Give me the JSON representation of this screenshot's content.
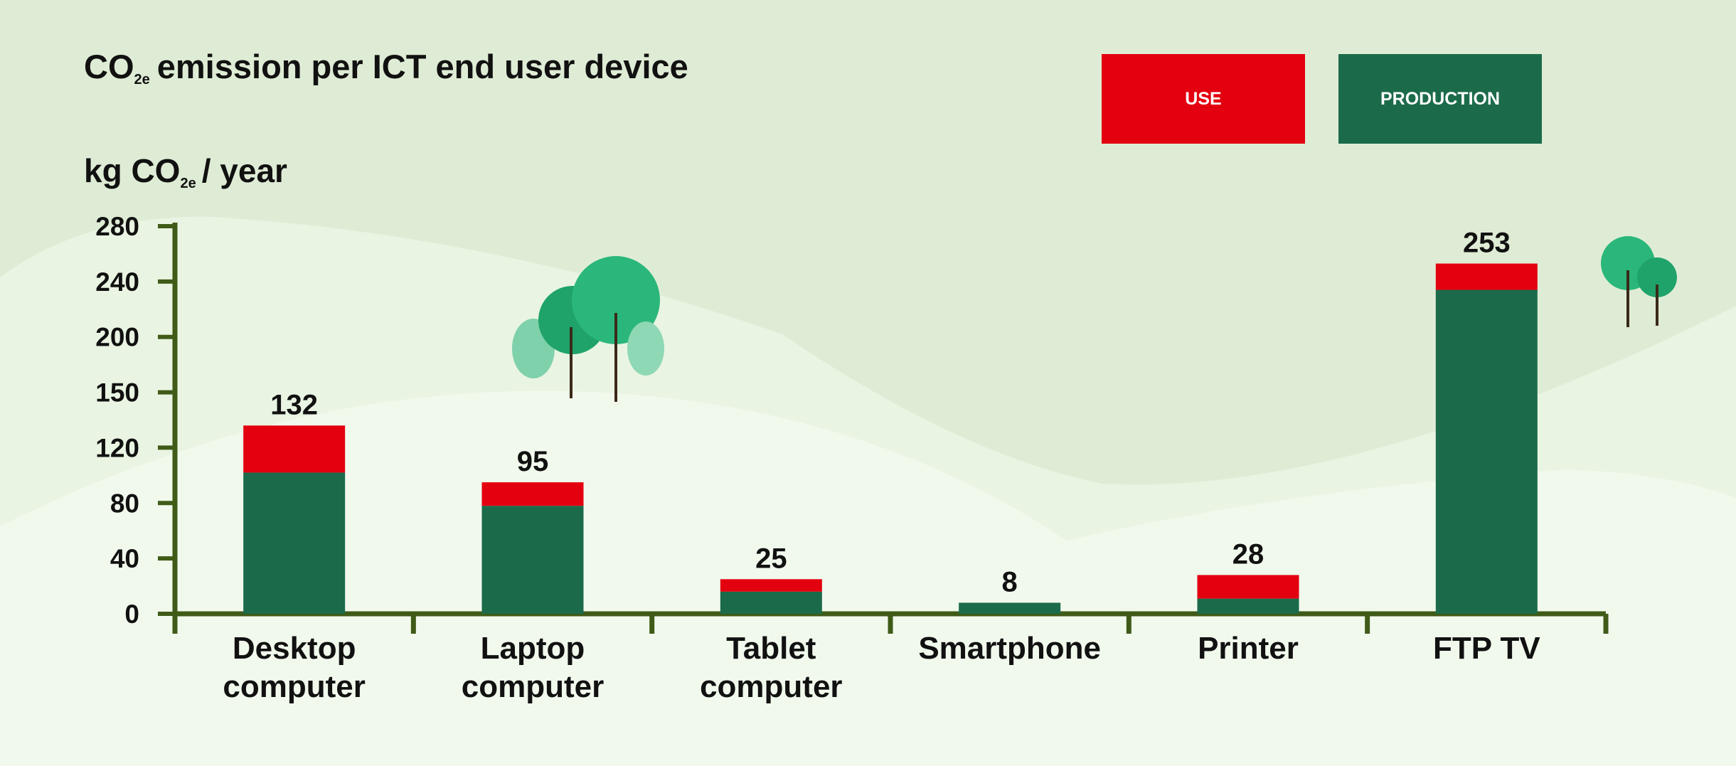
{
  "chart_data": {
    "type": "bar",
    "stacked": true,
    "title": [
      "CO",
      "2e",
      "emission per ICT end user device"
    ],
    "y_label": [
      "kg CO",
      "2e",
      "/ year"
    ],
    "categories": [
      "Desktop computer",
      "Laptop computer",
      "Tablet computer",
      "Smartphone",
      "Printer",
      "FTP TV"
    ],
    "series": [
      {
        "name": "PRODUCTION",
        "color": "#1b6b4a",
        "values": [
          102,
          78,
          16,
          8,
          11,
          234
        ]
      },
      {
        "name": "USE",
        "color": "#e3000f",
        "values": [
          30,
          17,
          9,
          0,
          17,
          19
        ]
      }
    ],
    "totals": [
      132,
      95,
      25,
      8,
      28,
      253
    ],
    "ylim": [
      0,
      280
    ],
    "yticks": [
      0,
      40,
      80,
      120,
      150,
      200,
      240,
      280
    ]
  }
}
